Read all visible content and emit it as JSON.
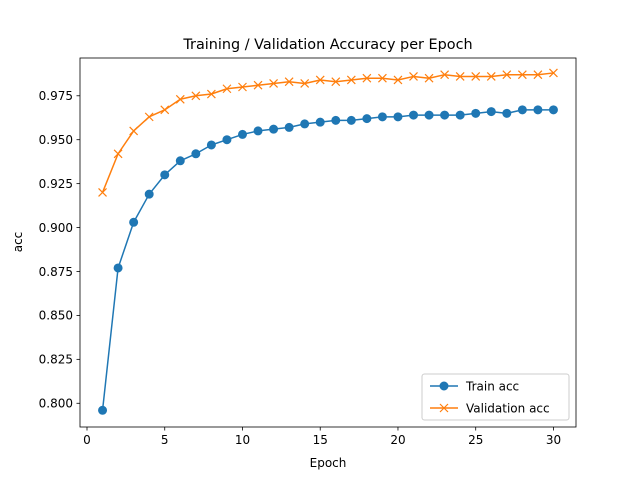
{
  "chart_data": {
    "type": "line",
    "title": "Training / Validation Accuracy per Epoch",
    "xlabel": "Epoch",
    "ylabel": "acc",
    "xlim": [
      -0.45,
      31.45
    ],
    "ylim": [
      0.7865,
      0.9965
    ],
    "xticks": [
      0,
      5,
      10,
      15,
      20,
      25,
      30
    ],
    "yticks": [
      0.8,
      0.825,
      0.85,
      0.875,
      0.9,
      0.925,
      0.95,
      0.975
    ],
    "ytick_labels": [
      "0.800",
      "0.825",
      "0.850",
      "0.875",
      "0.900",
      "0.925",
      "0.950",
      "0.975"
    ],
    "grid": false,
    "legend_position": "lower-right",
    "x": [
      1,
      2,
      3,
      4,
      5,
      6,
      7,
      8,
      9,
      10,
      11,
      12,
      13,
      14,
      15,
      16,
      17,
      18,
      19,
      20,
      21,
      22,
      23,
      24,
      25,
      26,
      27,
      28,
      29,
      30
    ],
    "series": [
      {
        "name": "Train acc",
        "color": "#1f77b4",
        "marker": "circle",
        "values": [
          0.796,
          0.877,
          0.903,
          0.919,
          0.93,
          0.938,
          0.942,
          0.947,
          0.95,
          0.953,
          0.955,
          0.956,
          0.957,
          0.959,
          0.96,
          0.961,
          0.961,
          0.962,
          0.963,
          0.963,
          0.964,
          0.964,
          0.964,
          0.964,
          0.965,
          0.966,
          0.965,
          0.967,
          0.967,
          0.967
        ]
      },
      {
        "name": "Validation acc",
        "color": "#ff7f0e",
        "marker": "x",
        "values": [
          0.92,
          0.942,
          0.955,
          0.963,
          0.967,
          0.973,
          0.975,
          0.976,
          0.979,
          0.98,
          0.981,
          0.982,
          0.983,
          0.982,
          0.984,
          0.983,
          0.984,
          0.985,
          0.985,
          0.984,
          0.986,
          0.985,
          0.987,
          0.986,
          0.986,
          0.986,
          0.987,
          0.987,
          0.987,
          0.988
        ]
      }
    ]
  }
}
